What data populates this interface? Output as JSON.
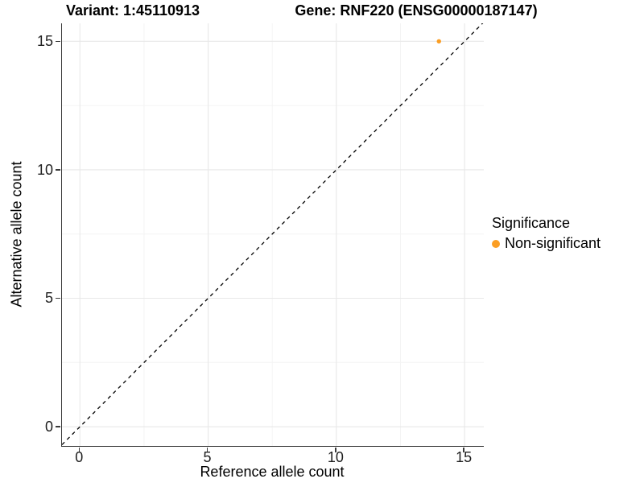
{
  "titles": {
    "variant": "Variant: 1:45110913",
    "gene": "Gene: RNF220 (ENSG00000187147)"
  },
  "legend": {
    "title": "Significance",
    "items": [
      {
        "label": "Non-significant",
        "color": "#FB9E24"
      }
    ]
  },
  "style": {
    "background": "#FFFFFF",
    "grid_major": "#E8E8E8",
    "grid_minor": "#F4F4F4",
    "axis_line": "#3A3A3A",
    "point_orange": "#FB9E24",
    "reference_line_color": "#000000"
  },
  "chart_data": {
    "type": "scatter",
    "title_left": "Variant: 1:45110913",
    "title_right": "Gene: RNF220 (ENSG00000187147)",
    "xlabel": "Reference allele count",
    "ylabel": "Alternative allele count",
    "xlim": [
      -0.7,
      15.75
    ],
    "ylim": [
      -0.75,
      15.7
    ],
    "x_ticks": [
      0,
      5,
      10,
      15
    ],
    "y_ticks": [
      0,
      5,
      10,
      15
    ],
    "x_minor_ticks": [
      2.5,
      7.5,
      12.5
    ],
    "y_minor_ticks": [
      2.5,
      7.5,
      12.5
    ],
    "grid": "major+minor",
    "legend_position": "right",
    "reference_line": {
      "type": "identity y=x",
      "style": "dashed",
      "color": "#000000"
    },
    "series": [
      {
        "name": "Non-significant",
        "color": "#FB9E24",
        "points": [
          {
            "x": 14,
            "y": 15
          }
        ]
      }
    ]
  }
}
